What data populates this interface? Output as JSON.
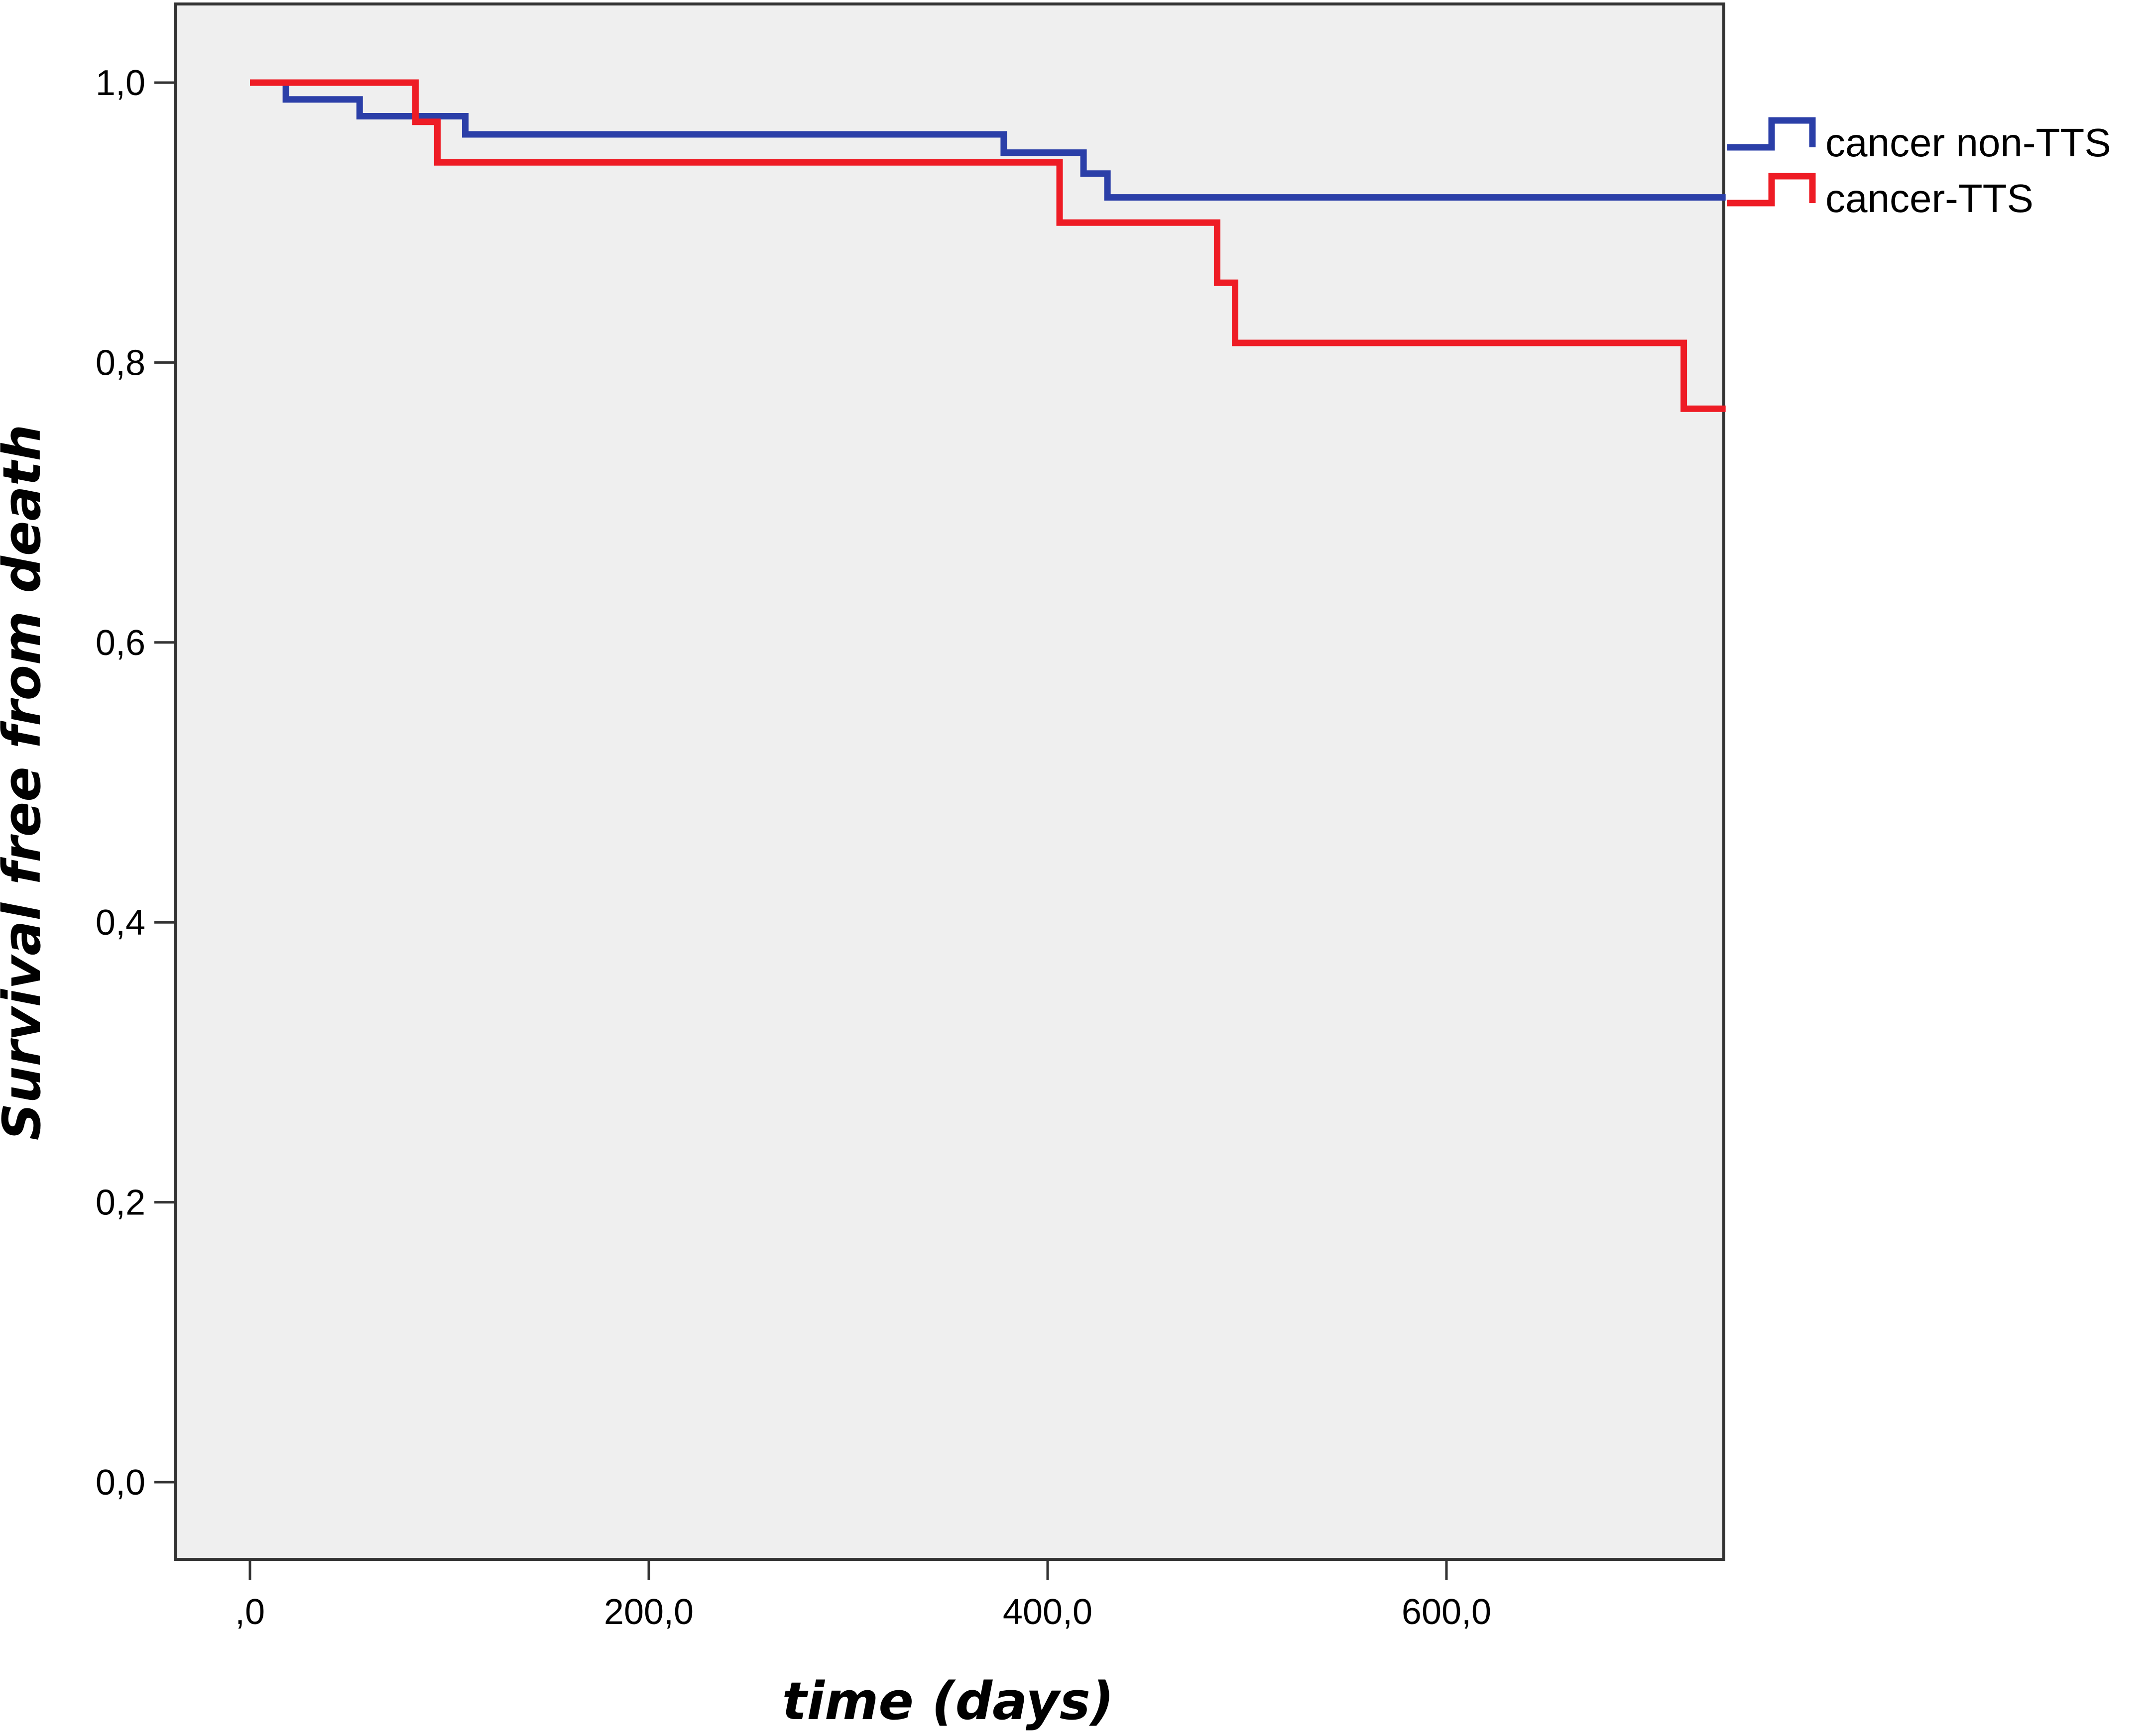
{
  "chart_data": {
    "type": "line",
    "subtype": "kaplan-meier-step",
    "xlabel": "time (days)",
    "ylabel": "Survival free from death",
    "xlim": [
      -20,
      740
    ],
    "ylim": [
      -0.11,
      1.11
    ],
    "x_ticks": [
      0,
      200,
      400,
      600
    ],
    "x_tick_labels": [
      ",0",
      "200,0",
      "400,0",
      "600,0"
    ],
    "y_ticks": [
      0,
      0.2,
      0.4,
      0.6,
      0.8,
      1.0
    ],
    "y_tick_labels": [
      "0,0",
      "0,2",
      "0,4",
      "0,6",
      "0,8",
      "1,0"
    ],
    "grid": false,
    "legend_position": "right, outside top",
    "series": [
      {
        "name": "cancer non-TTS",
        "color": "#2b3fa8",
        "steps": [
          [
            0,
            1.0
          ],
          [
            18,
            0.988
          ],
          [
            55,
            0.976
          ],
          [
            108,
            0.963
          ],
          [
            378,
            0.95
          ],
          [
            418,
            0.935
          ],
          [
            430,
            0.918
          ],
          [
            740,
            0.918
          ]
        ]
      },
      {
        "name": "cancer-TTS",
        "color": "#ee1c25",
        "steps": [
          [
            0,
            1.0
          ],
          [
            83,
            0.972
          ],
          [
            94,
            0.943
          ],
          [
            406,
            0.9
          ],
          [
            485,
            0.857
          ],
          [
            494,
            0.814
          ],
          [
            719,
            0.767
          ],
          [
            740,
            0.767
          ]
        ]
      }
    ]
  }
}
